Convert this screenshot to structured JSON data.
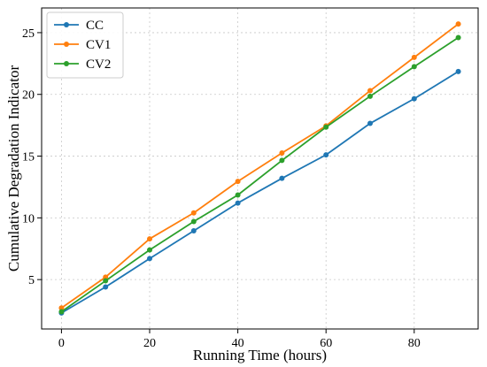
{
  "chart_data": {
    "type": "line",
    "x": [
      0,
      10,
      20,
      30,
      40,
      50,
      60,
      70,
      80,
      90
    ],
    "series": [
      {
        "name": "CC",
        "color": "#1f77b4",
        "values": [
          2.3,
          4.4,
          6.7,
          8.95,
          11.2,
          13.2,
          15.1,
          17.65,
          19.65,
          21.85
        ]
      },
      {
        "name": "CV1",
        "color": "#ff7f0e",
        "values": [
          2.7,
          5.2,
          8.3,
          10.4,
          12.95,
          15.25,
          17.45,
          20.3,
          23.0,
          25.7
        ]
      },
      {
        "name": "CV2",
        "color": "#2ca02c",
        "values": [
          2.4,
          4.9,
          7.4,
          9.7,
          11.85,
          14.65,
          17.35,
          19.85,
          22.25,
          24.6
        ]
      }
    ],
    "xlabel": "Running Time (hours)",
    "ylabel": "Cumulative Degradation Indicator",
    "xlim": [
      -4.5,
      94.5
    ],
    "ylim": [
      1.0,
      27.0
    ],
    "xticks": [
      0,
      20,
      40,
      60,
      80
    ],
    "yticks": [
      5,
      10,
      15,
      20,
      25
    ],
    "grid": true,
    "legend_position": "top-left"
  }
}
